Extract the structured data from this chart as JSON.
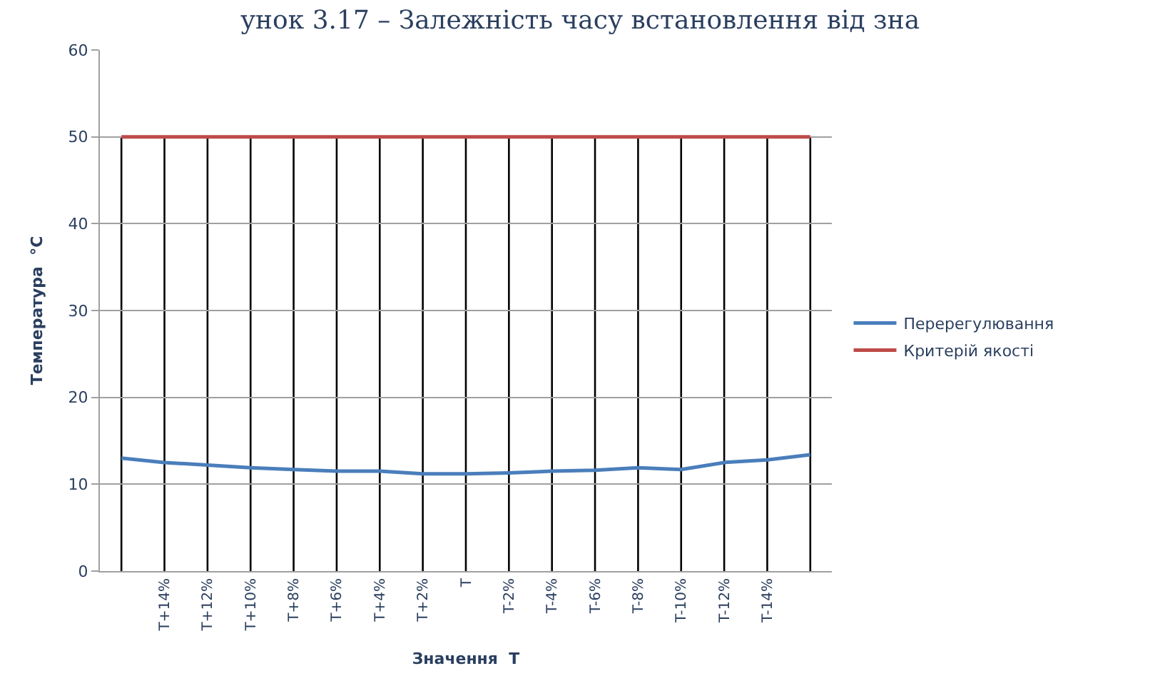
{
  "chart_data": {
    "type": "line",
    "title": "унок 3.17 – Залежність часу встановлення від зна",
    "xlabel": "Значення  T",
    "ylabel": "Температура  °C",
    "categories": [
      null,
      "T+14%",
      "T+12%",
      "T+10%",
      "T+8%",
      "T+6%",
      "T+4%",
      "T+2%",
      "T",
      "T-2%",
      "T-4%",
      "T-6%",
      "T-8%",
      "T-10%",
      "T-12%",
      "T-14%",
      null
    ],
    "series": [
      {
        "name": "Перерегулювання",
        "color": "#4a7ebb",
        "values": [
          13,
          12.5,
          12.2,
          11.9,
          11.7,
          11.5,
          11.5,
          11.2,
          11.2,
          11.3,
          11.5,
          11.6,
          11.9,
          11.7,
          12.5,
          12.8,
          13.4
        ]
      },
      {
        "name": "Критерій якості",
        "color": "#be4b48",
        "values": [
          50,
          50,
          50,
          50,
          50,
          50,
          50,
          50,
          50,
          50,
          50,
          50,
          50,
          50,
          50,
          50,
          50
        ]
      }
    ],
    "ylim": [
      0,
      60
    ],
    "yticks": [
      0,
      10,
      20,
      30,
      40,
      50,
      60
    ],
    "grid": true,
    "legend": "right",
    "marker": "none",
    "line_style": "solid"
  }
}
